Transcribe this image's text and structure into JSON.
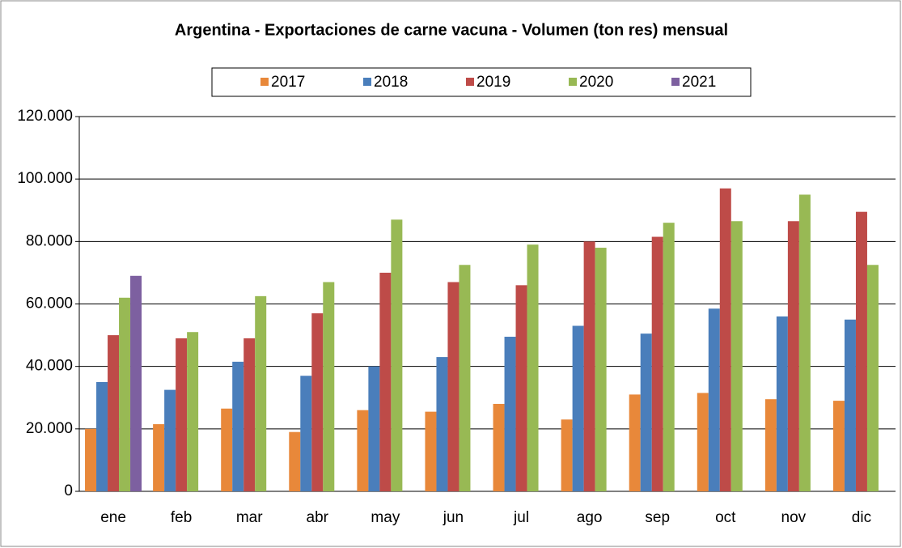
{
  "chart_data": {
    "type": "bar",
    "title": "Argentina - Exportaciones de carne vacuna - Volumen (ton res) mensual",
    "categories": [
      "ene",
      "feb",
      "mar",
      "abr",
      "may",
      "jun",
      "jul",
      "ago",
      "sep",
      "oct",
      "nov",
      "dic"
    ],
    "series": [
      {
        "name": "2017",
        "color": "#e8883a",
        "values": [
          20000,
          21500,
          26500,
          19000,
          26000,
          25500,
          28000,
          23000,
          31000,
          31500,
          29500,
          29000
        ]
      },
      {
        "name": "2018",
        "color": "#4a7ebb",
        "values": [
          35000,
          32500,
          41500,
          37000,
          40000,
          43000,
          49500,
          53000,
          50500,
          58500,
          56000,
          55000
        ]
      },
      {
        "name": "2019",
        "color": "#be4b48",
        "values": [
          50000,
          49000,
          49000,
          57000,
          70000,
          67000,
          66000,
          80000,
          81500,
          97000,
          86500,
          89500
        ]
      },
      {
        "name": "2020",
        "color": "#98b954",
        "values": [
          62000,
          51000,
          62500,
          67000,
          87000,
          72500,
          79000,
          78000,
          86000,
          86500,
          95000,
          72500
        ]
      },
      {
        "name": "2021",
        "color": "#7d60a0",
        "values": [
          69000,
          null,
          null,
          null,
          null,
          null,
          null,
          null,
          null,
          null,
          null,
          null
        ]
      }
    ],
    "ylim": [
      0,
      120000
    ],
    "yticks": [
      0,
      {
        "value": 20000,
        "label": "20.000"
      },
      {
        "value": 40000,
        "label": "40.000"
      },
      {
        "value": 60000,
        "label": "60.000"
      },
      {
        "value": 80000,
        "label": "80.000"
      },
      {
        "value": 100000,
        "label": "100.000"
      },
      {
        "value": 120000,
        "label": "120.000"
      }
    ],
    "grid": true,
    "legend": "top"
  }
}
